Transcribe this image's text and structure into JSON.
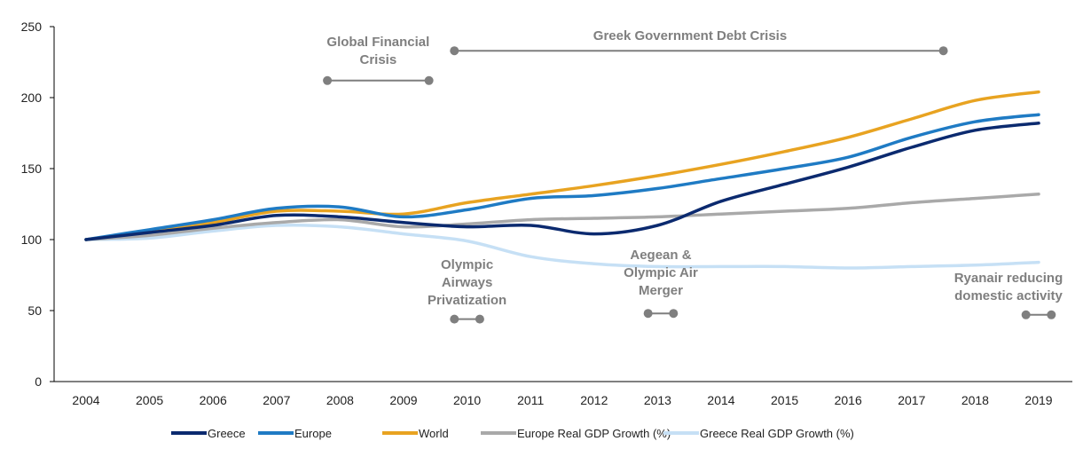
{
  "chart_data": {
    "type": "line",
    "x": [
      "2004",
      "2005",
      "2006",
      "2007",
      "2008",
      "2009",
      "2010",
      "2011",
      "2012",
      "2013",
      "2014",
      "2015",
      "2016",
      "2017",
      "2018",
      "2019"
    ],
    "ylim": [
      0,
      250
    ],
    "yticks": [
      "0",
      "50",
      "100",
      "150",
      "200",
      "250"
    ],
    "grid": false,
    "legend_position": "bottom",
    "series": [
      {
        "name": "Greece",
        "color": "#0b2a6f",
        "values": [
          100,
          105,
          110,
          117,
          116,
          112,
          109,
          110,
          104,
          110,
          127,
          139,
          151,
          165,
          177,
          182
        ]
      },
      {
        "name": "Europe",
        "color": "#1f7bc4",
        "values": [
          100,
          107,
          114,
          122,
          123,
          116,
          121,
          129,
          131,
          136,
          143,
          150,
          158,
          172,
          183,
          188
        ]
      },
      {
        "name": "World",
        "color": "#e8a321",
        "values": [
          100,
          106,
          112,
          120,
          120,
          118,
          126,
          132,
          138,
          145,
          153,
          162,
          172,
          185,
          198,
          204
        ]
      },
      {
        "name": "Europe Real GDP Growth (%)",
        "color": "#a9a9a9",
        "values": [
          100,
          103,
          108,
          112,
          114,
          109,
          111,
          114,
          115,
          116,
          118,
          120,
          122,
          126,
          129,
          132
        ]
      },
      {
        "name": "Greece Real GDP Growth (%)",
        "color": "#c6e0f5",
        "values": [
          100,
          101,
          106,
          110,
          109,
          104,
          99,
          88,
          83,
          81,
          81,
          81,
          80,
          81,
          82,
          84
        ]
      }
    ],
    "annotations": [
      {
        "id": "gfc",
        "lines": [
          "Global Financial",
          "Crisis"
        ],
        "range_x": [
          2007.8,
          2009.4
        ],
        "y": 212
      },
      {
        "id": "gdc",
        "lines": [
          "Greek Government Debt Crisis"
        ],
        "range_x": [
          2009.8,
          2017.5
        ],
        "y": 233
      },
      {
        "id": "olympic",
        "lines": [
          "Olympic",
          "Airways",
          "Privatization"
        ],
        "range_x": [
          2009.8,
          2010.2
        ],
        "y": 44
      },
      {
        "id": "aegean",
        "lines": [
          "Aegean &",
          "Olympic Air",
          "Merger"
        ],
        "range_x": [
          2012.85,
          2013.25
        ],
        "y": 48
      },
      {
        "id": "ryanair",
        "lines": [
          "Ryanair reducing",
          "domestic activity"
        ],
        "range_x": [
          2018.8,
          2019.2
        ],
        "y": 47
      }
    ]
  }
}
